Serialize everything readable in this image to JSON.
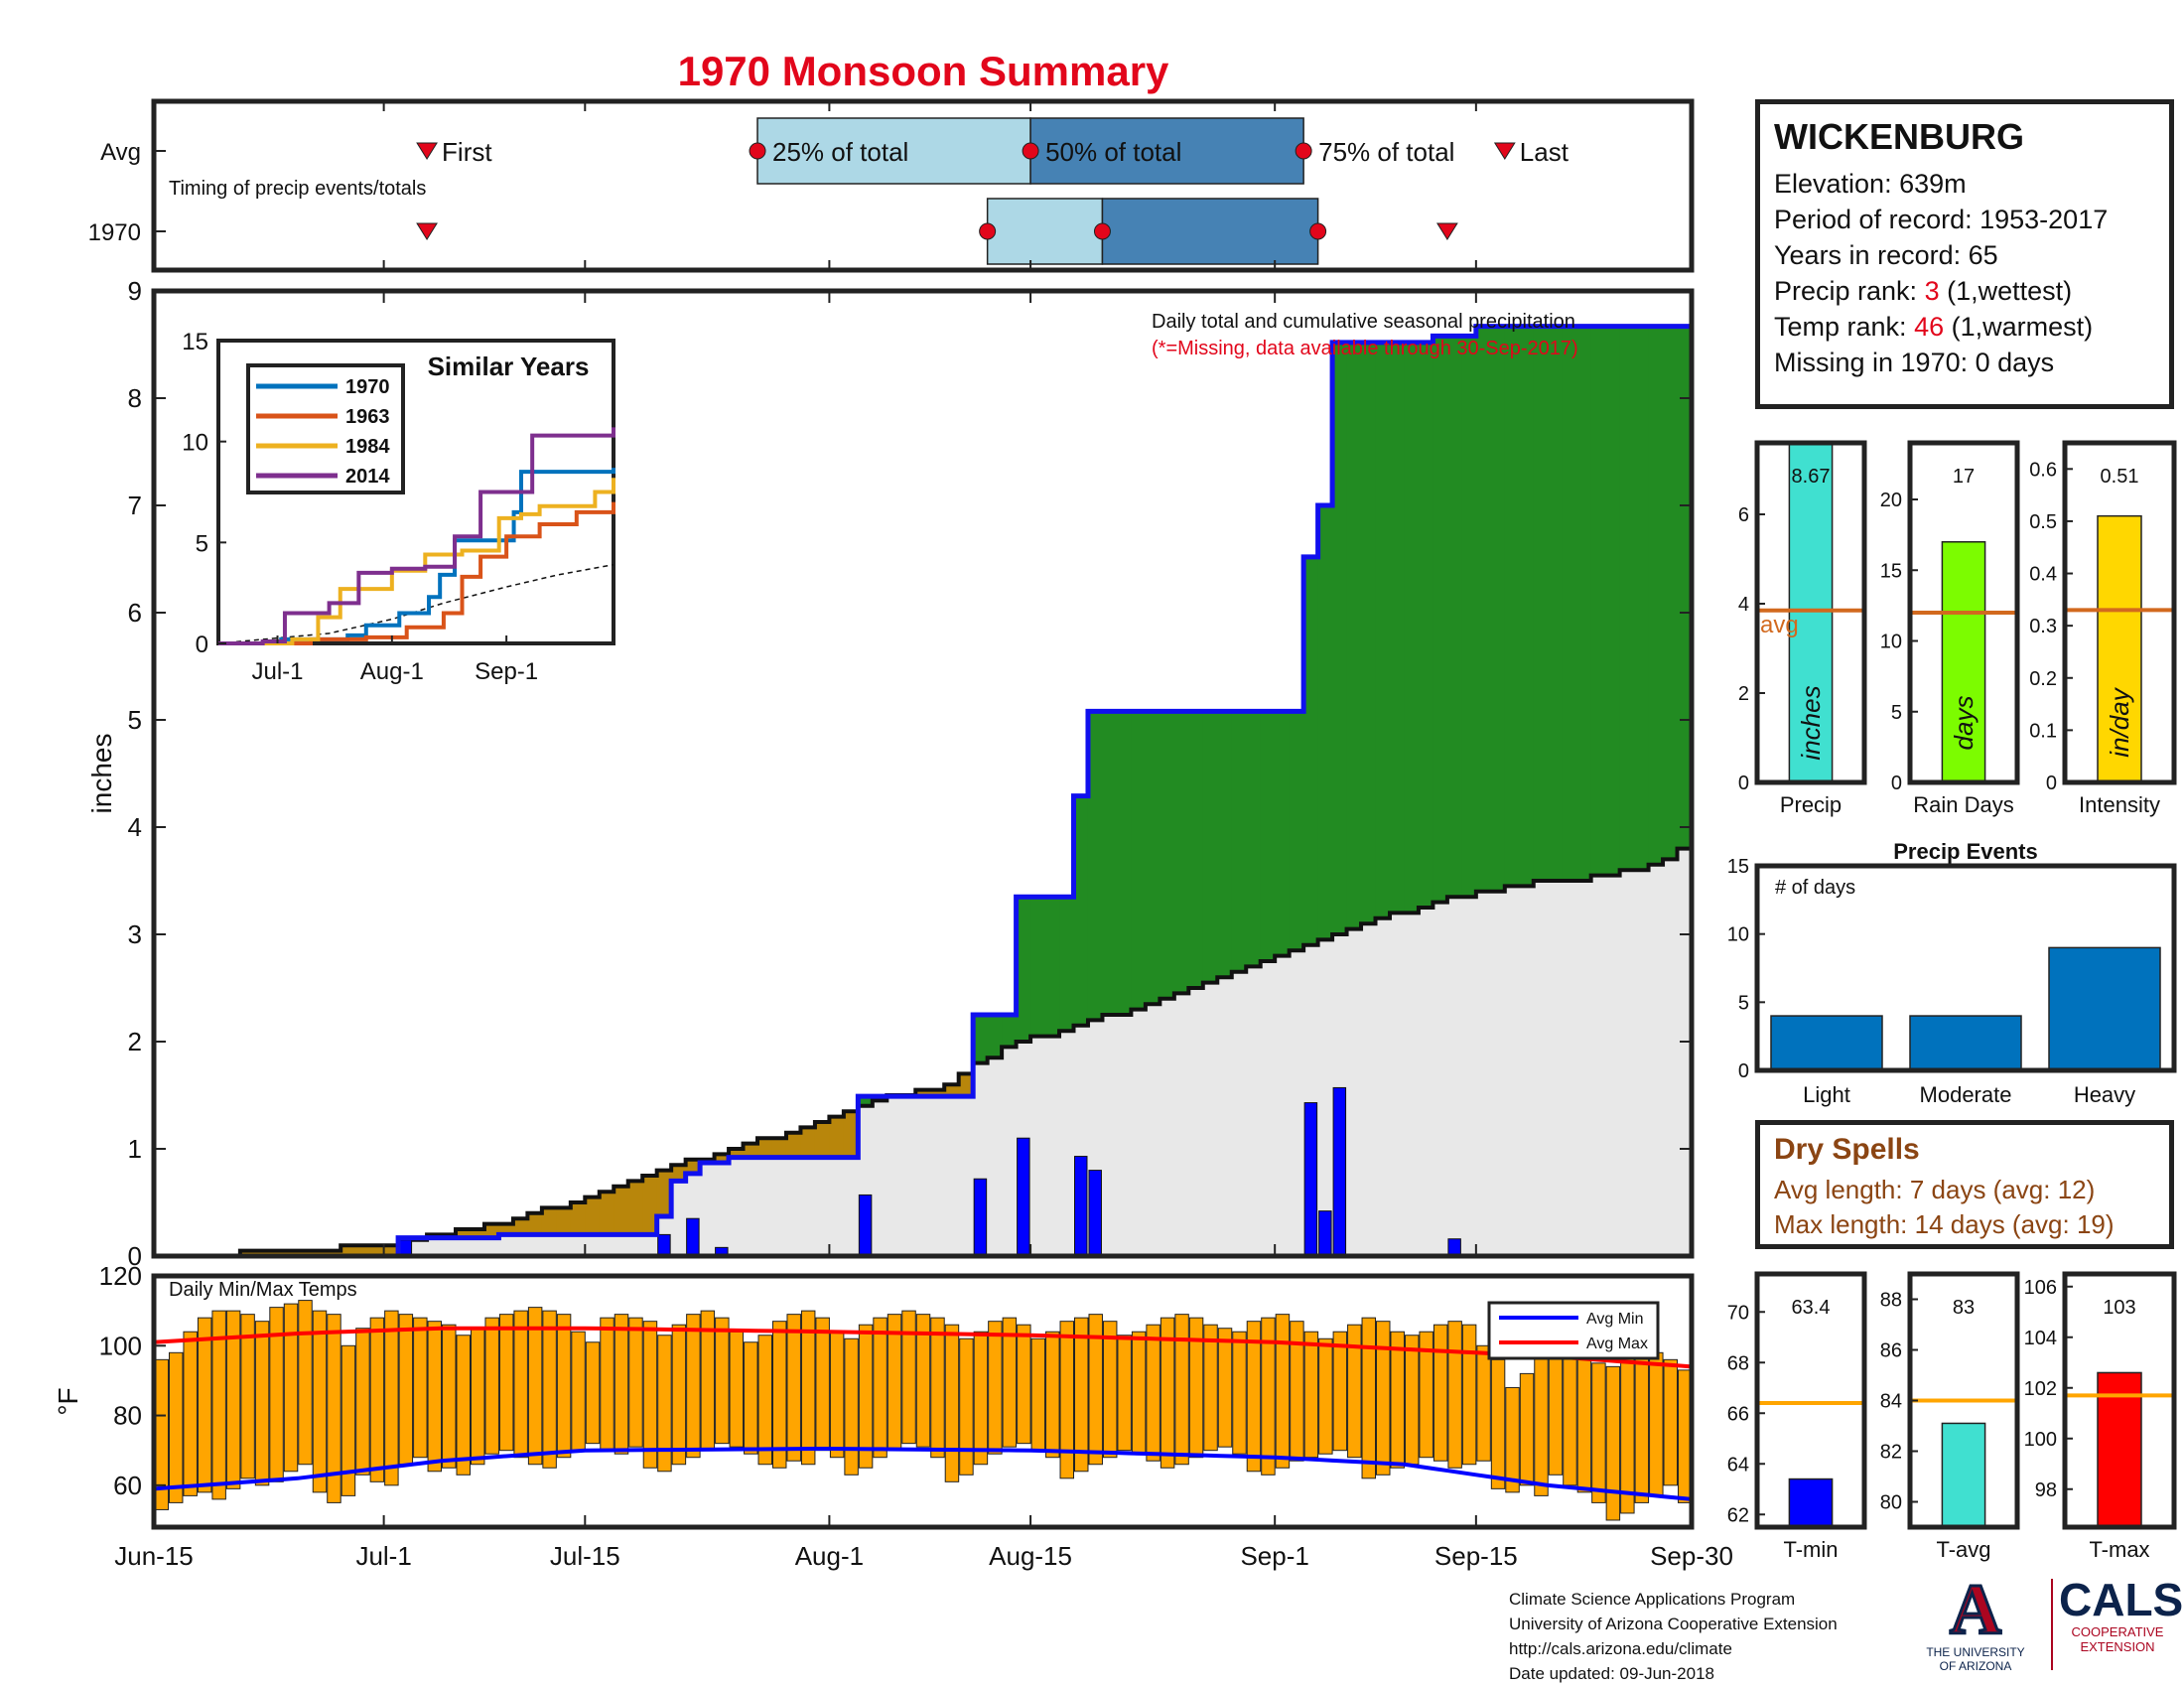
{
  "title": "1970 Monsoon Summary",
  "station": {
    "name": "WICKENBURG",
    "elevation": "Elevation: 639m",
    "period": "Period of record: 1953-2017",
    "years": "Years in record: 65",
    "precip_rank_label": "Precip rank: ",
    "precip_rank": "3",
    "precip_rank_note": " (1,wettest)",
    "temp_rank_label": "Temp rank: ",
    "temp_rank": "46",
    "temp_rank_note": " (1,warmest)",
    "missing": "Missing in 1970: 0 days"
  },
  "dry_spells": {
    "title": "Dry Spells",
    "avg": "Avg length: 7 days (avg: 12)",
    "max": "Max length: 14 days (avg: 19)"
  },
  "credits": {
    "line1": "Climate Science Applications Program",
    "line2": "University of Arizona Cooperative Extension",
    "line3": "http://cals.arizona.edu/climate",
    "line4": "Date updated: 09-Jun-2018"
  },
  "logos": {
    "ua_mark": "A",
    "ua_line1": "THE UNIVERSITY",
    "ua_line2": "OF ARIZONA",
    "cals": "CALS",
    "cals_line1": "COOPERATIVE",
    "cals_line2": "EXTENSION"
  },
  "colors": {
    "title_red": "#e2061b",
    "excess_green": "#228b22",
    "deficit_brown": "#b8860b",
    "avg_fill": "#e8e8e8",
    "daily_bar": "#0000ff",
    "temp_bar": "#ffa500",
    "avg_min_line": "#0000ff",
    "avg_max_line": "#ff0000",
    "box_light": "#add8e6",
    "box_dark": "#4682b4",
    "marker_red": "#e2061b",
    "precip_bar": "#40e0d0",
    "raindays_bar": "#7cfc00",
    "intensity_bar": "#ffd700",
    "avg_line": "#d2691e",
    "events_bar": "#0072bd",
    "tavg_line": "#ffa500",
    "series_1970": "#0072bd",
    "series_1963": "#d95319",
    "series_1984": "#edb120",
    "series_2014": "#7e2f8e"
  },
  "chart_data": [
    {
      "id": "timing",
      "type": "table",
      "rows": [
        "Avg",
        "1970"
      ],
      "annotation": "Timing of precip events/totals",
      "labels": {
        "first": "First",
        "q25": "25% of total",
        "q50": "50% of total",
        "q75": "75% of total",
        "last": "Last"
      },
      "x_domain": [
        "Jun-15",
        "Sep-30"
      ],
      "avg": {
        "first": "Jul-4",
        "q25": "Jul-27",
        "q50": "Aug-15",
        "q75": "Sep-3",
        "last": "Sep-17"
      },
      "y1970": {
        "first": "Jul-4",
        "q25": "Aug-12",
        "q50": "Aug-20",
        "q75": "Sep-4",
        "last": "Sep-13"
      }
    },
    {
      "id": "precip",
      "type": "area",
      "title": "Daily total and cumulative seasonal precipitation",
      "subtitle": "(*=Missing, data available through 30-Sep-2017)",
      "ylabel": "inches",
      "ylim": [
        0,
        9
      ],
      "yticks": [
        0,
        1,
        2,
        3,
        4,
        5,
        6,
        7,
        8,
        9
      ],
      "x_ticks": [
        "Jun-15",
        "Jul-1",
        "Jul-15",
        "Aug-1",
        "Aug-15",
        "Sep-1",
        "Sep-15",
        "Sep-30"
      ],
      "x_domain": [
        "Jun-15",
        "Sep-30"
      ],
      "avg_cumulative": {
        "x": [
          "Jun-15",
          "Jun-20",
          "Jun-25",
          "Jul-1",
          "Jul-5",
          "Jul-10",
          "Jul-15",
          "Jul-20",
          "Jul-25",
          "Jul-30",
          "Aug-4",
          "Aug-9",
          "Aug-13",
          "Aug-18",
          "Aug-23",
          "Aug-28",
          "Sep-2",
          "Sep-7",
          "Sep-12",
          "Sep-17",
          "Sep-22",
          "Sep-27",
          "Sep-30"
        ],
        "y": [
          0,
          0.02,
          0.05,
          0.1,
          0.2,
          0.35,
          0.55,
          0.8,
          1.0,
          1.2,
          1.45,
          1.6,
          1.95,
          2.15,
          2.35,
          2.6,
          2.85,
          3.1,
          3.3,
          3.45,
          3.52,
          3.65,
          3.85
        ]
      },
      "cumulative_1970": {
        "x": [
          "Jun-15",
          "Jul-2",
          "Jul-9",
          "Jul-20",
          "Jul-21",
          "Jul-22",
          "Jul-23",
          "Jul-25",
          "Aug-3",
          "Aug-11",
          "Aug-14",
          "Aug-18",
          "Aug-19",
          "Sep-3",
          "Sep-4",
          "Sep-5",
          "Sep-12",
          "Sep-15",
          "Sep-30"
        ],
        "y": [
          0,
          0.17,
          0.2,
          0.37,
          0.7,
          0.77,
          0.87,
          0.92,
          1.49,
          2.25,
          3.35,
          4.29,
          5.08,
          6.52,
          7.0,
          8.52,
          8.58,
          8.67,
          8.67
        ]
      },
      "daily_1970": {
        "x": [
          "Jul-2",
          "Jul-20",
          "Jul-22",
          "Jul-24",
          "Aug-3",
          "Aug-11",
          "Aug-14",
          "Aug-18",
          "Aug-19",
          "Sep-3",
          "Sep-4",
          "Sep-5",
          "Sep-13"
        ],
        "y": [
          0.15,
          0.2,
          0.35,
          0.08,
          0.57,
          0.72,
          1.1,
          0.93,
          0.8,
          1.43,
          0.42,
          1.57,
          0.16
        ]
      }
    },
    {
      "id": "similar-years",
      "type": "line",
      "title": "Similar Years",
      "ylim": [
        0,
        15
      ],
      "yticks": [
        0,
        5,
        10,
        15
      ],
      "x_ticks": [
        "Jul-1",
        "Aug-1",
        "Sep-1"
      ],
      "x_domain": [
        "Jun-15",
        "Sep-30"
      ],
      "series": [
        {
          "name": "1970",
          "x": [
            "Jun-15",
            "Jul-2",
            "Jul-20",
            "Jul-25",
            "Aug-3",
            "Aug-11",
            "Aug-14",
            "Aug-18",
            "Sep-3",
            "Sep-5",
            "Sep-30"
          ],
          "y": [
            0,
            0.2,
            0.4,
            0.9,
            1.5,
            2.3,
            3.4,
            5.1,
            6.5,
            8.5,
            8.7
          ]
        },
        {
          "name": "1963",
          "x": [
            "Jun-15",
            "Jul-10",
            "Jul-25",
            "Aug-5",
            "Aug-15",
            "Aug-20",
            "Aug-25",
            "Sep-1",
            "Sep-10",
            "Sep-20",
            "Sep-30"
          ],
          "y": [
            0,
            0.2,
            0.3,
            0.8,
            1.5,
            3.3,
            4.3,
            5.3,
            5.9,
            6.5,
            7.0
          ]
        },
        {
          "name": "1984",
          "x": [
            "Jun-15",
            "Jul-5",
            "Jul-12",
            "Jul-18",
            "Aug-1",
            "Aug-10",
            "Aug-20",
            "Aug-30",
            "Sep-5",
            "Sep-10",
            "Sep-25",
            "Sep-30"
          ],
          "y": [
            0,
            0.2,
            1.3,
            2.7,
            3.6,
            4.4,
            4.6,
            6.2,
            6.4,
            6.8,
            7.5,
            8.2
          ]
        },
        {
          "name": "2014",
          "x": [
            "Jun-15",
            "Jun-27",
            "Jul-3",
            "Jul-15",
            "Jul-23",
            "Aug-1",
            "Aug-10",
            "Aug-18",
            "Aug-25",
            "Sep-8",
            "Sep-25",
            "Sep-30"
          ],
          "y": [
            0,
            0.1,
            1.5,
            2.0,
            3.5,
            3.7,
            3.8,
            5.3,
            7.5,
            10.3,
            10.3,
            10.7
          ]
        }
      ],
      "avg_dashed": {
        "x": [
          "Jun-15",
          "Jul-15",
          "Aug-1",
          "Aug-15",
          "Sep-1",
          "Sep-15",
          "Sep-30"
        ],
        "y": [
          0,
          0.5,
          1.2,
          2.0,
          2.8,
          3.4,
          3.9
        ]
      }
    },
    {
      "id": "temps",
      "type": "bar",
      "annotation": "Daily Min/Max Temps",
      "ylabel": "°F",
      "ylim": [
        48,
        120
      ],
      "yticks": [
        60,
        80,
        100,
        120
      ],
      "x_ticks": [
        "Jun-15",
        "Jul-1",
        "Jul-15",
        "Aug-1",
        "Aug-15",
        "Sep-1",
        "Sep-15",
        "Sep-30"
      ],
      "x_domain": [
        "Jun-15",
        "Sep-30"
      ],
      "legend": [
        "Avg Min",
        "Avg Max"
      ],
      "legend_position": "top-right",
      "tmin": [
        53,
        55,
        57,
        58,
        56,
        59,
        62,
        60,
        61,
        64,
        66,
        58,
        55,
        57,
        63,
        61,
        60,
        66,
        68,
        64,
        65,
        63,
        66,
        69,
        70,
        68,
        66,
        65,
        68,
        70,
        72,
        70,
        69,
        71,
        65,
        64,
        66,
        68,
        70,
        72,
        71,
        69,
        66,
        65,
        67,
        66,
        70,
        68,
        63,
        65,
        68,
        70,
        72,
        71,
        68,
        61,
        63,
        66,
        69,
        71,
        72,
        70,
        68,
        62,
        64,
        66,
        68,
        70,
        69,
        67,
        65,
        66,
        68,
        70,
        71,
        69,
        64,
        63,
        65,
        67,
        68,
        69,
        70,
        68,
        62,
        63,
        65,
        66,
        68,
        67,
        65,
        66,
        67,
        59,
        58,
        60,
        57,
        63,
        60,
        58,
        55,
        50,
        52,
        55,
        57,
        60,
        55,
        52,
        54,
        58
      ],
      "tmax": [
        96,
        98,
        104,
        108,
        110,
        110,
        109,
        107,
        111,
        112,
        113,
        110,
        109,
        100,
        105,
        108,
        110,
        109,
        108,
        107,
        106,
        103,
        105,
        108,
        109,
        110,
        111,
        110,
        109,
        104,
        101,
        108,
        109,
        108,
        107,
        103,
        106,
        109,
        110,
        108,
        104,
        101,
        103,
        107,
        109,
        110,
        108,
        104,
        102,
        106,
        108,
        109,
        110,
        109,
        108,
        106,
        102,
        104,
        107,
        108,
        106,
        102,
        104,
        107,
        108,
        109,
        107,
        103,
        104,
        106,
        108,
        109,
        108,
        106,
        105,
        104,
        107,
        108,
        109,
        107,
        104,
        102,
        104,
        106,
        108,
        107,
        104,
        103,
        104,
        106,
        107,
        106,
        100,
        96,
        88,
        92,
        104,
        106,
        102,
        96,
        95,
        94,
        100,
        102,
        98,
        96,
        93,
        95,
        90,
        88
      ],
      "avg_min": {
        "x": [
          "Jun-15",
          "Jun-25",
          "Jul-5",
          "Jul-15",
          "Aug-1",
          "Aug-15",
          "Sep-1",
          "Sep-10",
          "Sep-20",
          "Sep-30"
        ],
        "y": [
          59,
          62,
          67,
          70,
          70.5,
          70,
          68,
          66,
          60,
          56
        ]
      },
      "avg_max": {
        "x": [
          "Jun-15",
          "Jun-25",
          "Jul-5",
          "Jul-15",
          "Aug-1",
          "Aug-15",
          "Sep-1",
          "Sep-10",
          "Sep-20",
          "Sep-30"
        ],
        "y": [
          101,
          103.5,
          105,
          105,
          104,
          103,
          101,
          99,
          97,
          94
        ]
      }
    },
    {
      "id": "precip-bar",
      "type": "bar",
      "value": 8.67,
      "label": "8.67",
      "avg": 3.85,
      "avg_label": "avg",
      "ylim": [
        0,
        7.6
      ],
      "yticks": [
        0,
        2,
        4,
        6
      ],
      "unit": "inches",
      "xlabel": "Precip"
    },
    {
      "id": "raindays-bar",
      "type": "bar",
      "value": 17,
      "label": "17",
      "avg": 12,
      "ylim": [
        0,
        24
      ],
      "yticks": [
        0,
        5,
        10,
        15,
        20
      ],
      "unit": "days",
      "xlabel": "Rain Days"
    },
    {
      "id": "intensity-bar",
      "type": "bar",
      "value": 0.51,
      "label": "0.51",
      "avg": 0.33,
      "ylim": [
        0,
        0.65
      ],
      "yticks": [
        0,
        0.1,
        0.2,
        0.3,
        0.4,
        0.5,
        0.6
      ],
      "unit": "in/day",
      "xlabel": "Intensity"
    },
    {
      "id": "events",
      "type": "bar",
      "title": "Precip Events",
      "annotation": "# of days",
      "categories": [
        "Light",
        "Moderate",
        "Heavy"
      ],
      "values": [
        4,
        4,
        9
      ],
      "ylim": [
        0,
        15
      ],
      "yticks": [
        0,
        5,
        10,
        15
      ]
    },
    {
      "id": "tmin-bar",
      "type": "bar",
      "value": 63.4,
      "label": "63.4",
      "avg": 66.4,
      "ylim": [
        61.5,
        71.5
      ],
      "yticks": [
        62,
        64,
        66,
        68,
        70
      ],
      "xlabel": "T-min"
    },
    {
      "id": "tavg-bar",
      "type": "bar",
      "value": 83.1,
      "label": "83",
      "avg": 84,
      "ylim": [
        79,
        89
      ],
      "yticks": [
        80,
        82,
        84,
        86,
        88
      ],
      "xlabel": "T-avg"
    },
    {
      "id": "tmax-bar",
      "type": "bar",
      "value": 102.6,
      "label": "103",
      "avg": 101.7,
      "ylim": [
        96.5,
        106.5
      ],
      "yticks": [
        98,
        100,
        102,
        104,
        106
      ],
      "xlabel": "T-max"
    }
  ]
}
